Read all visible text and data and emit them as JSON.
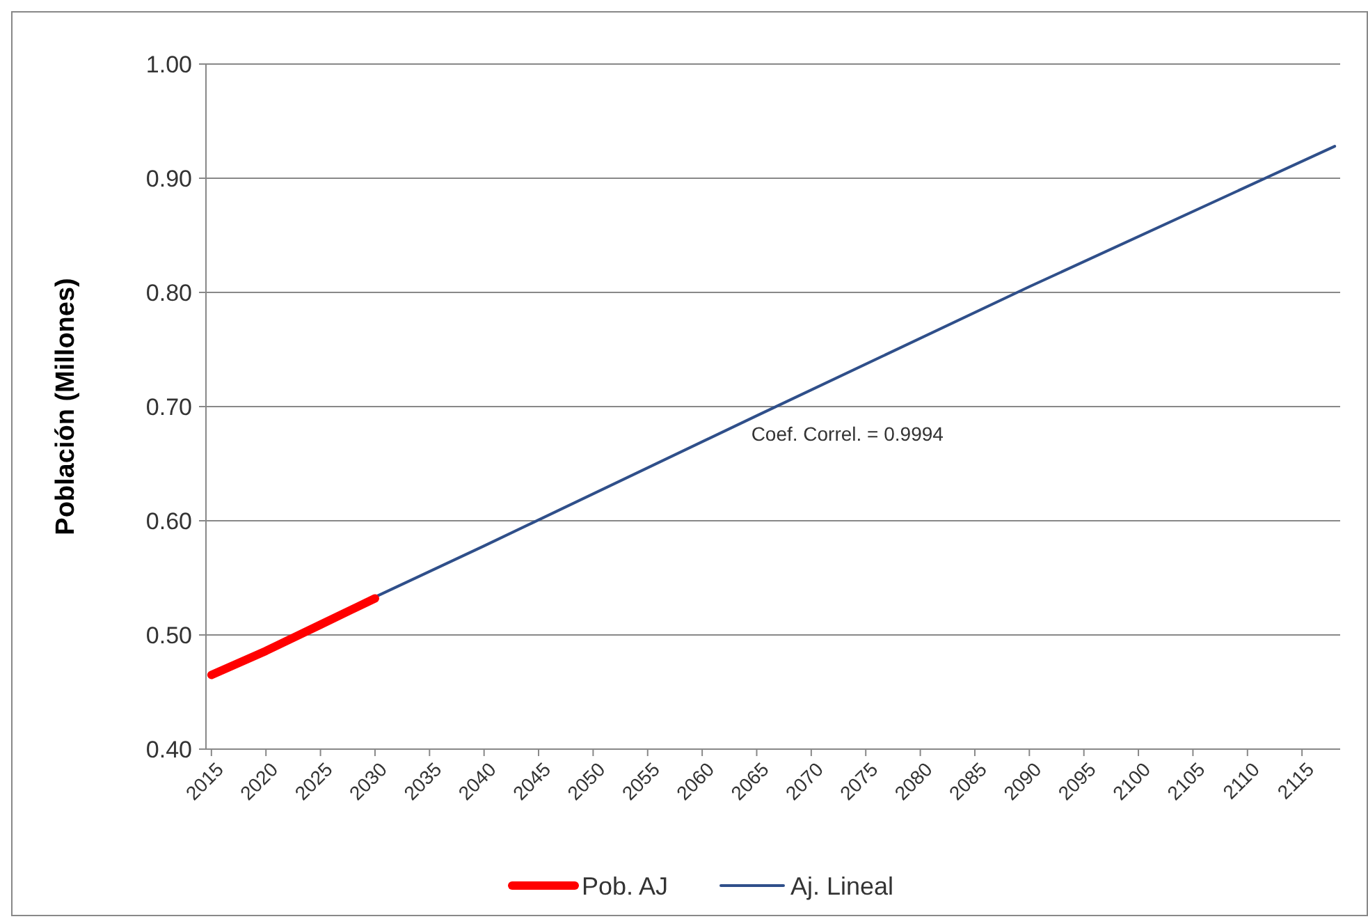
{
  "chart_data": {
    "type": "line",
    "ylabel": "Población (Millones)",
    "xlim": [
      2014.5,
      2118.5
    ],
    "xticks": [
      2015,
      2020,
      2025,
      2030,
      2035,
      2040,
      2045,
      2050,
      2055,
      2060,
      2065,
      2070,
      2075,
      2080,
      2085,
      2090,
      2095,
      2100,
      2105,
      2110,
      2115
    ],
    "ylim": [
      0.4,
      1.0
    ],
    "yticks": [
      {
        "value": 0.4,
        "label": "0.40"
      },
      {
        "value": 0.5,
        "label": "0.50"
      },
      {
        "value": 0.6,
        "label": "0.60"
      },
      {
        "value": 0.7,
        "label": "0.70"
      },
      {
        "value": 0.8,
        "label": "0.80"
      },
      {
        "value": 0.9,
        "label": "0.90"
      },
      {
        "value": 1.0,
        "label": "1.00"
      }
    ],
    "grid": "y",
    "legend": "bottom",
    "marker": "none",
    "line_style": "solid",
    "annotations": [
      "Coef. Correl. = 0.9994"
    ],
    "series": [
      {
        "name": "Pob. AJ",
        "color": "#ff0000",
        "x": [
          2015,
          2020,
          2025,
          2030
        ],
        "values": [
          0.465,
          0.486,
          0.509,
          0.532
        ]
      },
      {
        "name": "Aj. Lineal",
        "color": "#2f4f8a",
        "x": [
          2015,
          2040,
          2065,
          2090,
          2118
        ],
        "values": [
          0.466,
          0.578,
          0.692,
          0.805,
          0.928
        ]
      }
    ]
  }
}
